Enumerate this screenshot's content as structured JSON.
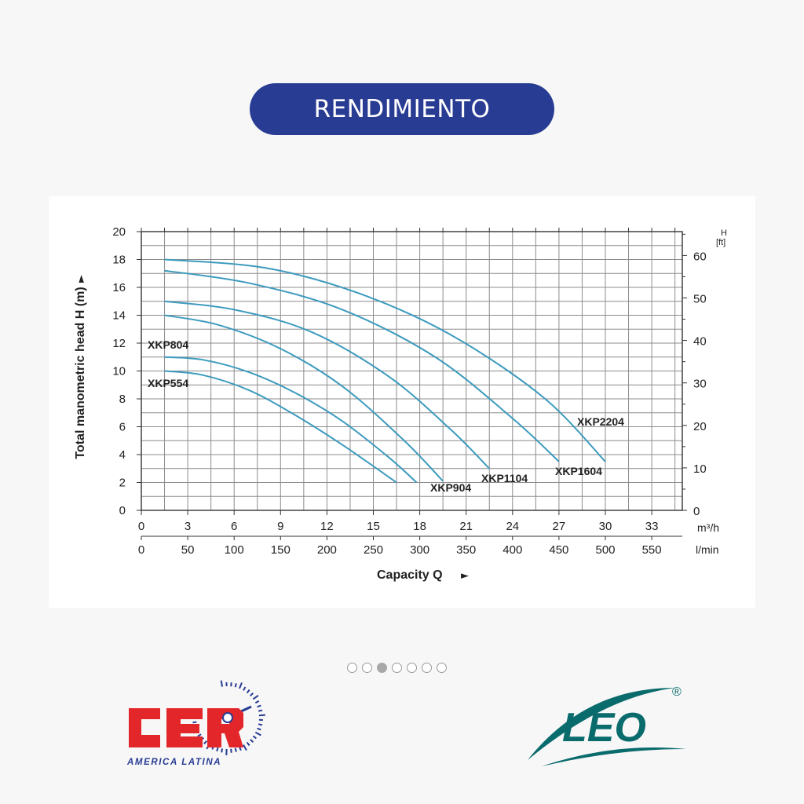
{
  "header": {
    "title": "RENDIMIENTO"
  },
  "carousel": {
    "dot_count": 7,
    "active_index": 2
  },
  "chart_data": {
    "type": "line",
    "ylabel": "Total manometric head H (m)",
    "ylabel_arrow": "►",
    "xlabel": "Capacity Q",
    "xlabel_arrow": "►",
    "ylim": [
      0,
      20
    ],
    "xlim": [
      0,
      35
    ],
    "y_ticks": [
      "0",
      "2",
      "4",
      "6",
      "8",
      "10",
      "12",
      "14",
      "16",
      "18",
      "20"
    ],
    "y2_title": "H",
    "y2_unit": "[ft]",
    "y2_ticks": [
      "0",
      "10",
      "20",
      "30",
      "40",
      "50",
      "60"
    ],
    "x_ticks": [
      "0",
      "3",
      "6",
      "9",
      "12",
      "15",
      "18",
      "21",
      "24",
      "27",
      "30",
      "33"
    ],
    "x_unit": "m³/h",
    "x2_ticks": [
      "0",
      "50",
      "100",
      "150",
      "200",
      "250",
      "300",
      "350",
      "400",
      "450",
      "500",
      "550"
    ],
    "x2_unit": "l/min",
    "grid": true,
    "series": [
      {
        "name": "XKP554",
        "x": [
          1.5,
          4,
          7,
          10,
          13,
          16.5
        ],
        "y": [
          10,
          9.7,
          8.6,
          6.8,
          4.7,
          2
        ]
      },
      {
        "name": "XKP804",
        "x": [
          1.5,
          4,
          7,
          10,
          13,
          16,
          17.8
        ],
        "y": [
          11,
          10.8,
          9.9,
          8.4,
          6.4,
          3.8,
          2
        ]
      },
      {
        "name": "XKP904",
        "x": [
          1.5,
          5,
          9,
          13,
          17,
          19.5
        ],
        "y": [
          14,
          13.3,
          11.6,
          8.9,
          5,
          2.1
        ]
      },
      {
        "name": "XKP1104",
        "x": [
          1.5,
          6,
          11,
          16,
          20,
          22.5
        ],
        "y": [
          15,
          14.4,
          12.8,
          9.6,
          5.8,
          3
        ]
      },
      {
        "name": "XKP1604",
        "x": [
          1.5,
          7,
          13,
          19,
          24,
          27
        ],
        "y": [
          17.2,
          16.3,
          14.4,
          11,
          6.6,
          3.5
        ]
      },
      {
        "name": "XKP2204",
        "x": [
          1.5,
          8,
          14,
          20,
          26,
          30
        ],
        "y": [
          18,
          17.4,
          15.6,
          12.6,
          8.1,
          3.5
        ]
      }
    ],
    "series_color": "#3d9bbe"
  },
  "logos": {
    "cer": {
      "text": "CER",
      "subtitle": "AMERICA LATINA",
      "color": "#e3262a",
      "accent": "#283c93"
    },
    "leo": {
      "text": "LEO",
      "mark": "®",
      "color": "#0a6b6d"
    }
  }
}
